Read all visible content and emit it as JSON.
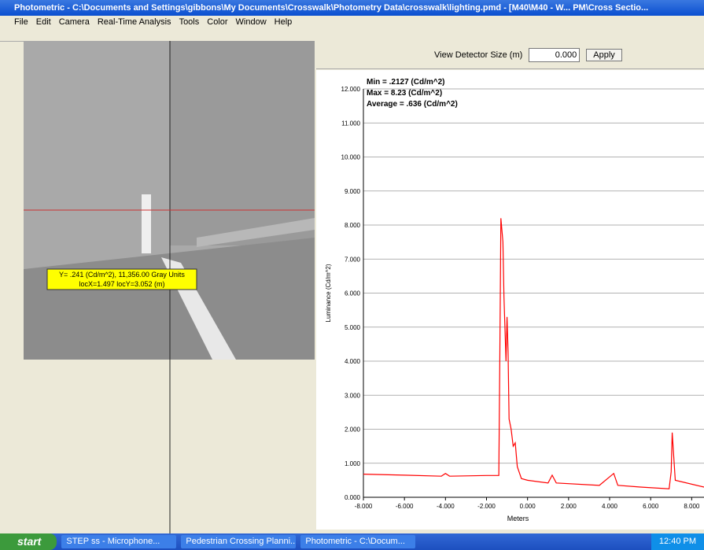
{
  "window": {
    "title": "Photometric - C:\\Documents and Settings\\gibbons\\My Documents\\Crosswalk\\Photometry Data\\crosswalk\\lighting.pmd - [M40\\M40 - W... PM\\Cross Sectio...",
    "menu": [
      "File",
      "Edit",
      "Camera",
      "Real-Time Analysis",
      "Tools",
      "Color",
      "Window",
      "Help"
    ]
  },
  "toolbar": {
    "detector_label": "View Detector Size (m)",
    "detector_value": "0.000",
    "apply": "Apply"
  },
  "image_readout": [
    "Y= .241 (Cd/m^2), 11,356.00 Gray Units",
    "locX=1.497 locY=3.052 (m)"
  ],
  "chart_data": {
    "type": "line",
    "annotations": [
      "Min = .2127 (Cd/m^2)",
      "Max = 8.23 (Cd/m^2)",
      "Average = .636 (Cd/m^2)"
    ],
    "x_label": "Meters",
    "y_label": "Luminance (Cd/m^2)",
    "color": "#ff0000",
    "x": [
      -8,
      -6,
      -4.2,
      -4,
      -3.8,
      -2,
      -1.4,
      -1.35,
      -1.3,
      -1.2,
      -1.15,
      -1.05,
      -1.0,
      -0.95,
      -0.9,
      -0.8,
      -0.7,
      -0.6,
      -0.5,
      -0.3,
      0,
      1,
      1.2,
      1.4,
      3.5,
      4.2,
      4.4,
      5.5,
      6.9,
      7.0,
      7.05,
      7.2,
      8.6
    ],
    "values": [
      0.68,
      0.65,
      0.62,
      0.7,
      0.62,
      0.64,
      0.64,
      4.2,
      8.2,
      7.5,
      5.9,
      4.0,
      5.3,
      4.3,
      2.3,
      2.0,
      1.5,
      1.6,
      0.9,
      0.55,
      0.5,
      0.42,
      0.65,
      0.42,
      0.35,
      0.7,
      0.35,
      0.3,
      0.25,
      0.75,
      1.9,
      0.5,
      0.3
    ],
    "xlim": [
      -8,
      8.6
    ],
    "ylim": [
      0,
      12
    ],
    "xticks": [
      {
        "value": -8,
        "label": "-8.000"
      },
      {
        "value": -6,
        "label": "-6.000"
      },
      {
        "value": -4,
        "label": "-4.000"
      },
      {
        "value": -2,
        "label": "-2.000"
      },
      {
        "value": 0,
        "label": "0.000"
      },
      {
        "value": 2,
        "label": "2.000"
      },
      {
        "value": 4,
        "label": "4.000"
      },
      {
        "value": 6,
        "label": "6.000"
      },
      {
        "value": 8,
        "label": "8.000"
      }
    ],
    "yticks": [
      {
        "value": 0,
        "label": "0.000"
      },
      {
        "value": 1,
        "label": "1.000"
      },
      {
        "value": 2,
        "label": "2.000"
      },
      {
        "value": 3,
        "label": "3.000"
      },
      {
        "value": 4,
        "label": "4.000"
      },
      {
        "value": 5,
        "label": "5.000"
      },
      {
        "value": 6,
        "label": "6.000"
      },
      {
        "value": 7,
        "label": "7.000"
      },
      {
        "value": 8,
        "label": "8.000"
      },
      {
        "value": 9,
        "label": "9.000"
      },
      {
        "value": 10,
        "label": "10.000"
      },
      {
        "value": 11,
        "label": "11.000"
      },
      {
        "value": 12,
        "label": "12.000"
      }
    ],
    "grid": true
  },
  "taskbar": {
    "start": "start",
    "tasks": [
      "STEP ss - Microphone...",
      "Pedestrian Crossing Planni...",
      "Photometric - C:\\Docum..."
    ],
    "clock": "12:40 PM"
  }
}
